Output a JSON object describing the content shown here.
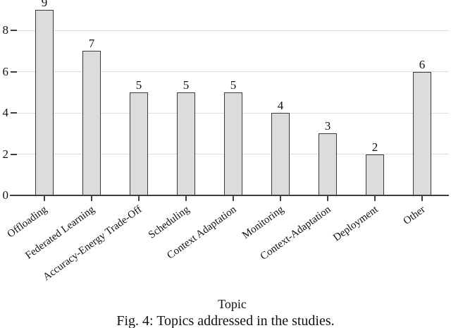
{
  "figure": {
    "caption": "Fig. 4: Topics addressed in the studies."
  },
  "chart_data": {
    "type": "bar",
    "categories": [
      "Offloading",
      "Federated Learning",
      "Accuracy-Energy Trade-Off",
      "Scheduling",
      "Context Adaptation",
      "Monitoring",
      "Context-Adaptation",
      "Deployment",
      "Other"
    ],
    "values": [
      9,
      7,
      5,
      5,
      5,
      4,
      3,
      2,
      6
    ],
    "bar_labels": [
      9,
      7,
      5,
      5,
      5,
      4,
      3,
      2,
      6
    ],
    "title": "",
    "xlabel": "Topic",
    "ylabel": "",
    "ylim": [
      0,
      9.3
    ],
    "yticks": [
      0,
      2,
      4,
      6,
      8
    ],
    "grid": true,
    "legend": "none",
    "x_label_rotation_deg": 36,
    "colors": {
      "bar_fill": "#dcdcdc",
      "bar_border": "#3a3a3a",
      "gridline": "#dedede",
      "axis": "#3f3f3f",
      "text": "#111111",
      "background": "#ffffff"
    }
  }
}
